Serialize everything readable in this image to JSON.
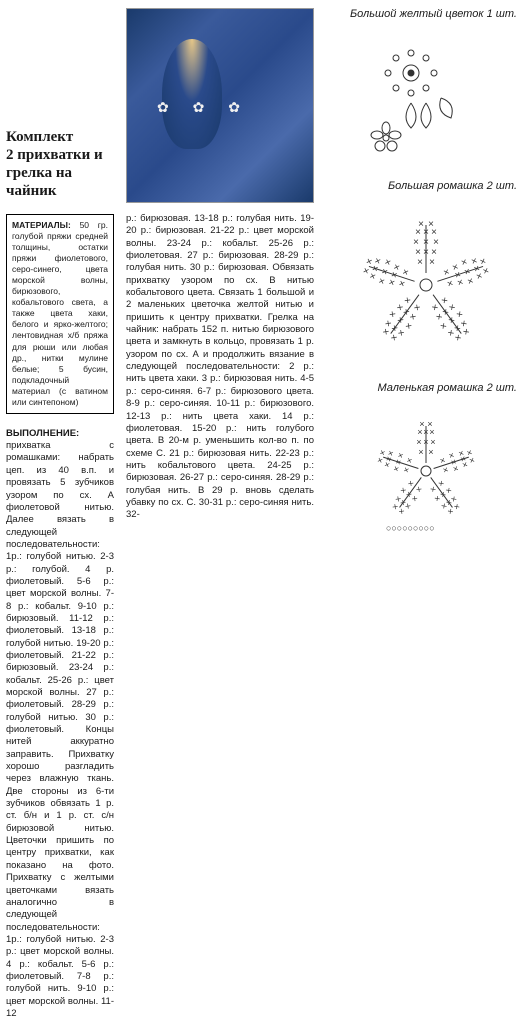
{
  "title": "Комплект\n2 прихватки и\nгрелка на чайник",
  "materials": {
    "heading": "МАТЕРИАЛЫ:",
    "text": "50 гр. голубой пряжи средней толщины, остатки пряжи фиолетового, серо-синего, цвета морской волны, бирюзового, кобальтового света, а также цвета хаки, белого и ярко-желтого; лентовидная х/б пряжа для рюши или любая др., нитки мулине белые; 5 бусин, подкладочный материал (с ватином или синтепоном)"
  },
  "execution": {
    "heading": "ВЫПОЛНЕНИЕ:",
    "text_left": "прихватка с ромашками: набрать цеп. из 40 в.п. и провязать 5 зубчиков узором по сх. А фиолетовой нитью. Далее вязать в следующей последовательности: 1р.: голубой нитью. 2-3 р.: голубой. 4 р. фиолетовый. 5-6 р.: цвет морской волны. 7-8 р.: кобальт. 9-10 р.: бирюзовый. 11-12 р.: фиолетовый. 13-18 р.: голубой нитью. 19-20 р.: фиолетовый. 21-22 р.: бирюзовый. 23-24 р.: кобальт. 25-26 р.: цвет морской волны. 27 р.: фиолетовый. 28-29 р.: голубой нитью. 30 р.: фиолетовый. Концы нитей аккуратно заправить. Прихватку хорошо разгладить через влажную ткань. Две стороны из 6-ти зубчиков обвязать 1 р. ст. б/н и 1 р. ст. с/н бирюзовой нитью. Цветочки пришить по центру прихватки, как показано на фото. Прихватку с желтыми цветочками вязать аналогично в следующей последовательности: 1р.: голубой нитью. 2-3 р.: цвет морской волны. 4 р.: кобальт. 5-6 р.: фиолетовый. 7-8 р.: голубой нить. 9-10 р.: цвет морской волны. 11-12",
    "text_mid": "р.: бирюзовая. 13-18 р.: голубая нить. 19-20 р.: бирюзовая. 21-22 р.: цвет морской волны. 23-24 р.: кобальт. 25-26 р.: фиолетовая. 27 р.: бирюзовая. 28-29 р.: голубая нить. 30 р.: бирюзовая. Обвязать прихватку узором по сх. В нитью кобальтового цвета. Связать 1 большой и 2 маленьких цветочка желтой нитью и пришить к центру прихватки. Грелка на чайник: набрать 152 п. нитью бирюзового цвета и замкнуть в кольцо, провязать 1 р. узором по сх. А и продолжить вязание в следующей последовательности: 2 р.: нить цвета хаки. 3 р.: бирюзовая нить. 4-5 р.: серо-синяя. 6-7 р.: бирюзового цвета. 8-9 р.: серо-синяя. 10-11 р.: бирюзового. 12-13 р.: нить цвета хаки. 14 р.: фиолетовая. 15-20 р.: нить голубого цвета. В 20-м р. уменьшить кол-во п. по схеме С. 21 р.: бирюзовая нить. 22-23 р.: нить кобальтового цвета. 24-25 р.: бирюзовая. 26-27 р.: серо-синяя. 28-29 р.: голубая нить. В 29 р. вновь сделать убавку по сх. С. 30-31 р.: серо-синяя нить. 32-"
  },
  "diagrams": {
    "flower1_label": "Большой желтый цветок 1 шт.",
    "flower2_label": "Большая ромашка 2 шт.",
    "flower3_label": "Маленькая ромашка 2 шт."
  },
  "colors": {
    "text": "#1a1a1a",
    "border": "#000000",
    "photo_blue_dark": "#1a3a6b",
    "photo_blue_light": "#4a6aab",
    "diagram_stroke": "#333333"
  }
}
